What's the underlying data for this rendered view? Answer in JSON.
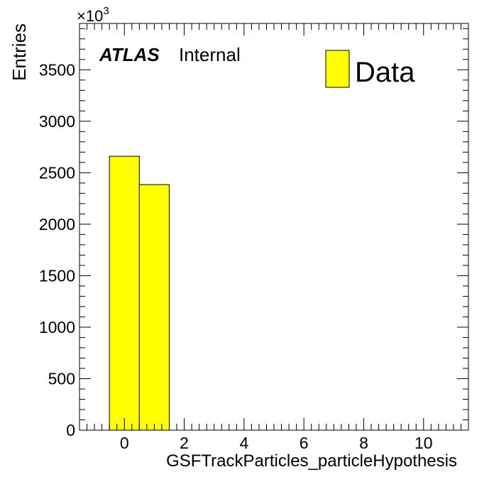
{
  "chart_data": {
    "type": "bar",
    "x": [
      0,
      1
    ],
    "bin_width": 1,
    "values": [
      2660,
      2385
    ],
    "xlabel": "GSFTrackParticles_particleHypothesis",
    "ylabel": "Entries",
    "xlim": [
      -1.5,
      11.5
    ],
    "ylim": [
      0,
      3950
    ],
    "x_ticks": [
      "0",
      "2",
      "4",
      "6",
      "8",
      "10"
    ],
    "x_tick_values": [
      0,
      2,
      4,
      6,
      8,
      10
    ],
    "y_ticks": [
      "0",
      "500",
      "1000",
      "1500",
      "2000",
      "2500",
      "3000",
      "3500"
    ],
    "y_tick_values": [
      0,
      500,
      1000,
      1500,
      2000,
      2500,
      3000,
      3500
    ],
    "y_multiplier_prefix": "×10",
    "y_multiplier_exp": "3",
    "atlas_label": "ATLAS",
    "atlas_sublabel": "Internal",
    "legend": {
      "entries": [
        "Data"
      ],
      "placement": "top-right"
    },
    "fill_color": "#ffff00",
    "edge_color": "#000000",
    "grid": false
  }
}
